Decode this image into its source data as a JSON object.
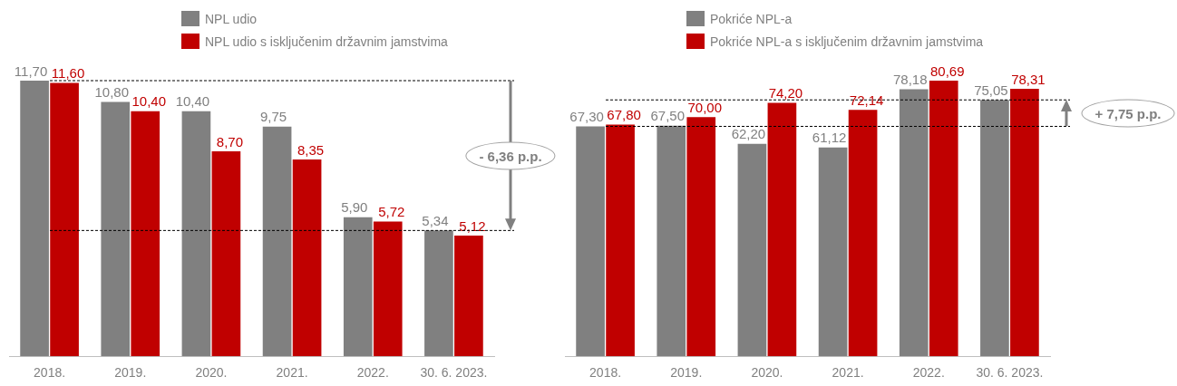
{
  "chart_data": [
    {
      "type": "bar",
      "categories": [
        "2018.",
        "2019.",
        "2020.",
        "2021.",
        "2022.",
        "30. 6. 2023."
      ],
      "series": [
        {
          "name": "NPL udio",
          "color": "#808080",
          "values": [
            11.7,
            10.8,
            10.4,
            9.75,
            5.9,
            5.34
          ],
          "value_labels": [
            "11,70",
            "10,80",
            "10,40",
            "9,75",
            "5,90",
            "5,34"
          ]
        },
        {
          "name": "NPL udio s isključenim državnim jamstvima",
          "color": "#c00000",
          "values": [
            11.6,
            10.4,
            8.7,
            8.35,
            5.72,
            5.12
          ],
          "value_labels": [
            "11,60",
            "10,40",
            "8,70",
            "8,35",
            "5,72",
            "5,12"
          ]
        }
      ],
      "legend": "top",
      "grid": false,
      "ref_lines": [
        {
          "axis": "y",
          "value": 11.7,
          "line_style": "dashed",
          "color": "#000000"
        },
        {
          "axis": "y",
          "value": 5.34,
          "line_style": "dashed",
          "color": "#000000"
        }
      ],
      "annotations": [
        "- 6,36 p.p."
      ]
    },
    {
      "type": "bar",
      "categories": [
        "2018.",
        "2019.",
        "2020.",
        "2021.",
        "2022.",
        "30. 6. 2023."
      ],
      "series": [
        {
          "name": "Pokriće NPL-a",
          "color": "#808080",
          "values": [
            67.3,
            67.5,
            62.2,
            61.12,
            78.18,
            75.05
          ],
          "value_labels": [
            "67,30",
            "67,50",
            "62,20",
            "61,12",
            "78,18",
            "75,05"
          ]
        },
        {
          "name": "Pokriće NPL-a s isključenim državnim jamstvima",
          "color": "#c00000",
          "values": [
            67.8,
            70.0,
            74.2,
            72.14,
            80.69,
            78.31
          ],
          "value_labels": [
            "67,80",
            "70,00",
            "74,20",
            "72,14",
            "80,69",
            "78,31"
          ]
        }
      ],
      "legend": "top",
      "grid": false,
      "ref_lines": [
        {
          "axis": "y",
          "value": 67.3,
          "line_style": "dashed",
          "color": "#000000"
        },
        {
          "axis": "y",
          "value": 75.05,
          "line_style": "dashed",
          "color": "#000000"
        }
      ],
      "annotations": [
        "+ 7,75 p.p."
      ]
    }
  ]
}
